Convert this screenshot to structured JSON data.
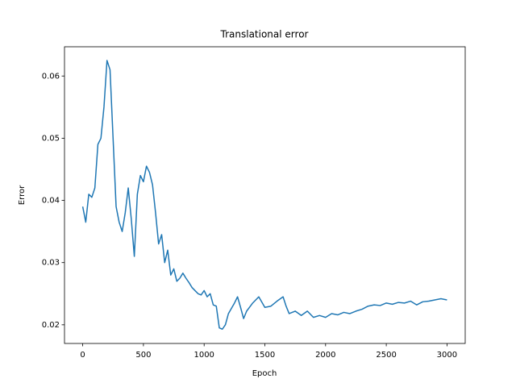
{
  "chart_data": {
    "type": "line",
    "title": "Translational error",
    "xlabel": "Epoch",
    "ylabel": "Error",
    "x": [
      0,
      25,
      50,
      75,
      100,
      125,
      150,
      175,
      200,
      225,
      250,
      275,
      300,
      325,
      350,
      375,
      400,
      425,
      450,
      475,
      500,
      525,
      550,
      575,
      600,
      625,
      650,
      675,
      700,
      725,
      750,
      775,
      800,
      825,
      850,
      875,
      900,
      925,
      950,
      975,
      1000,
      1025,
      1050,
      1075,
      1100,
      1125,
      1150,
      1175,
      1200,
      1250,
      1275,
      1300,
      1325,
      1350,
      1400,
      1450,
      1500,
      1550,
      1600,
      1650,
      1675,
      1700,
      1750,
      1800,
      1850,
      1900,
      1950,
      2000,
      2050,
      2100,
      2150,
      2200,
      2250,
      2300,
      2350,
      2400,
      2450,
      2500,
      2550,
      2600,
      2650,
      2700,
      2750,
      2800,
      2850,
      2900,
      2950,
      3000
    ],
    "series": [
      {
        "name": "Translational error",
        "color": "#1f77b4",
        "values": [
          0.039,
          0.0365,
          0.041,
          0.0405,
          0.042,
          0.049,
          0.05,
          0.055,
          0.0625,
          0.061,
          0.05,
          0.039,
          0.0365,
          0.035,
          0.038,
          0.042,
          0.037,
          0.031,
          0.041,
          0.044,
          0.043,
          0.0455,
          0.0445,
          0.0425,
          0.038,
          0.033,
          0.0345,
          0.03,
          0.032,
          0.028,
          0.029,
          0.027,
          0.0275,
          0.0283,
          0.0275,
          0.0268,
          0.026,
          0.0255,
          0.025,
          0.0248,
          0.0255,
          0.0245,
          0.025,
          0.0232,
          0.023,
          0.0195,
          0.0193,
          0.02,
          0.0218,
          0.0235,
          0.0245,
          0.0228,
          0.021,
          0.0222,
          0.0235,
          0.0245,
          0.0228,
          0.023,
          0.0238,
          0.0245,
          0.023,
          0.0218,
          0.0222,
          0.0215,
          0.0222,
          0.0212,
          0.0215,
          0.0212,
          0.0218,
          0.0216,
          0.022,
          0.0218,
          0.0222,
          0.0225,
          0.023,
          0.0232,
          0.0231,
          0.0235,
          0.0233,
          0.0236,
          0.0235,
          0.0238,
          0.0232,
          0.0237,
          0.0238,
          0.024,
          0.0242,
          0.024
        ]
      }
    ],
    "xlim": [
      -150,
      3150
    ],
    "ylim": [
      0.017,
      0.0647
    ],
    "xticks": [
      0,
      500,
      1000,
      1500,
      2000,
      2500,
      3000
    ],
    "yticks": [
      0.02,
      0.03,
      0.04,
      0.05,
      0.06
    ]
  }
}
